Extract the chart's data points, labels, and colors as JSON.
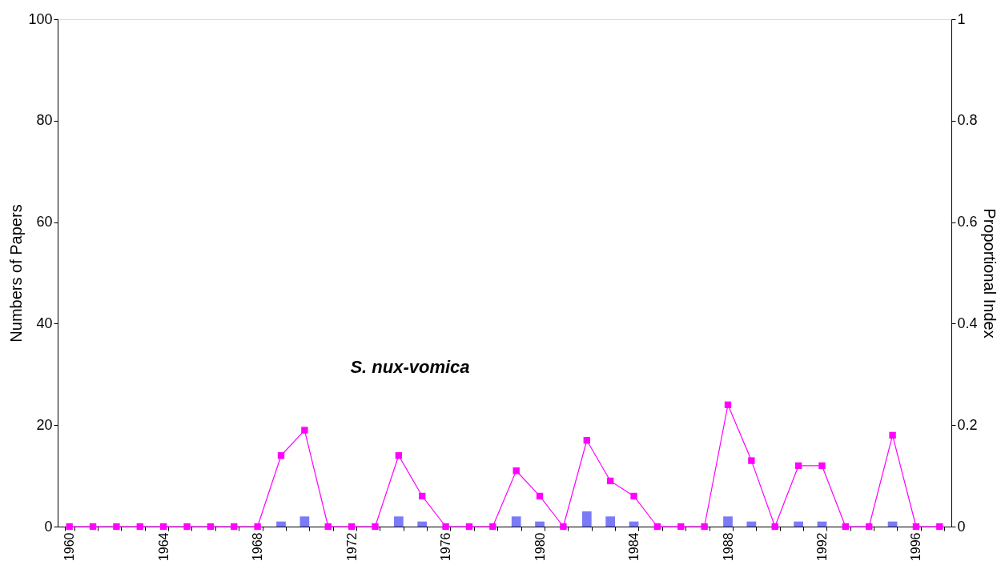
{
  "chart_data": {
    "type": "bar",
    "categories": [
      "1960",
      null,
      null,
      null,
      "1964",
      null,
      null,
      null,
      "1968",
      null,
      null,
      null,
      "1972",
      null,
      null,
      null,
      "1976",
      null,
      null,
      null,
      "1980",
      null,
      null,
      null,
      "1984",
      null,
      null,
      null,
      "1988",
      null,
      null,
      null,
      "1992",
      null,
      null,
      null,
      "1996",
      null
    ],
    "ylabel": "Numbers of Papers",
    "y2label": "Proportional Index",
    "ylim": [
      0,
      100
    ],
    "yticks": [
      0,
      20,
      40,
      60,
      80,
      100
    ],
    "y2lim": [
      0,
      1
    ],
    "y2ticks": [
      0,
      0.2,
      0.4,
      0.6,
      0.8,
      1
    ],
    "series": [
      {
        "color": "#7b7bf7",
        "values": [
          0,
          0,
          0,
          0,
          0,
          0,
          0,
          0,
          0,
          1,
          2,
          0,
          0,
          0,
          2,
          1,
          0,
          0,
          0,
          2,
          1,
          0,
          3,
          2,
          1,
          0,
          0,
          0,
          2,
          1,
          0,
          1,
          1,
          0,
          0,
          1,
          0,
          0
        ]
      },
      {
        "type": "line",
        "axis": "y2",
        "color": "#ff00ff",
        "values": [
          0,
          0,
          0,
          0,
          0,
          0,
          0,
          0,
          0,
          0.14,
          0.19,
          0,
          0,
          0,
          0.14,
          0.06,
          0,
          0,
          0,
          0.11,
          0.06,
          0,
          0.17,
          0.09,
          0.06,
          0,
          0,
          0,
          0.24,
          0.13,
          0,
          0.12,
          0.12,
          0,
          0,
          0.18,
          0,
          0
        ]
      }
    ],
    "marker": "square",
    "line_style": "solid",
    "grid": false,
    "annotations": [
      "S. nux-vomica"
    ]
  }
}
